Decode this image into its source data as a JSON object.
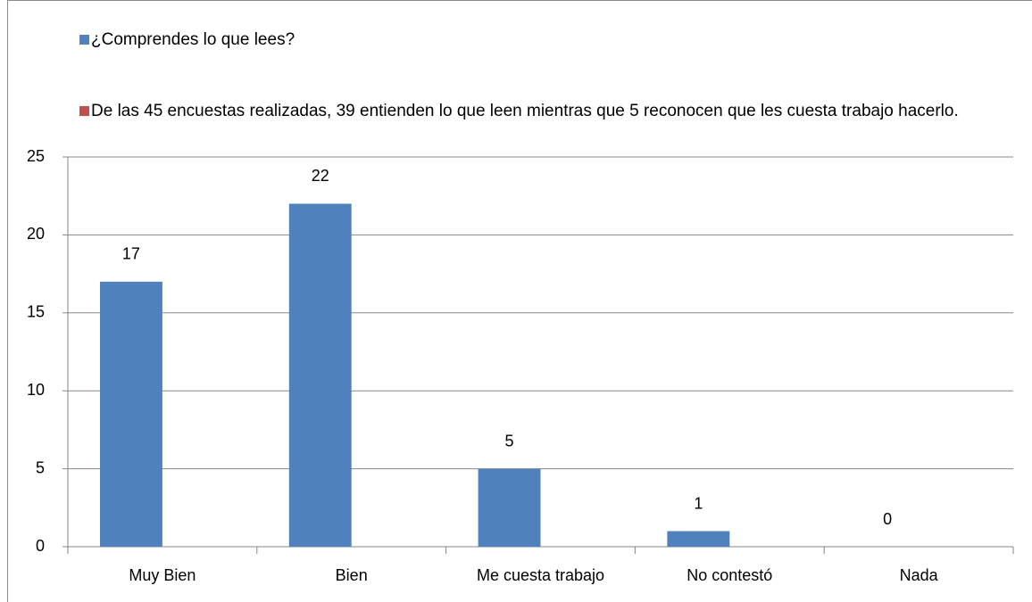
{
  "chart_data": {
    "type": "bar",
    "categories": [
      "Muy Bien",
      "Bien",
      "Me cuesta trabajo",
      "No contestó",
      "Nada"
    ],
    "series": [
      {
        "name": "¿Comprendes lo que lees?",
        "color": "#4f81bd",
        "values": [
          17,
          22,
          5,
          1,
          0
        ]
      },
      {
        "name": "De las 45 encuestas realizadas, 39 entienden lo que leen mientras que 5 reconocen que les cuesta trabajo hacerlo.",
        "color": "#c0504d",
        "values": [
          null,
          null,
          null,
          null,
          null
        ]
      }
    ],
    "ylim": [
      0,
      25
    ],
    "yticks": [
      0,
      5,
      10,
      15,
      20,
      25
    ],
    "grid": true,
    "legend": "top"
  }
}
